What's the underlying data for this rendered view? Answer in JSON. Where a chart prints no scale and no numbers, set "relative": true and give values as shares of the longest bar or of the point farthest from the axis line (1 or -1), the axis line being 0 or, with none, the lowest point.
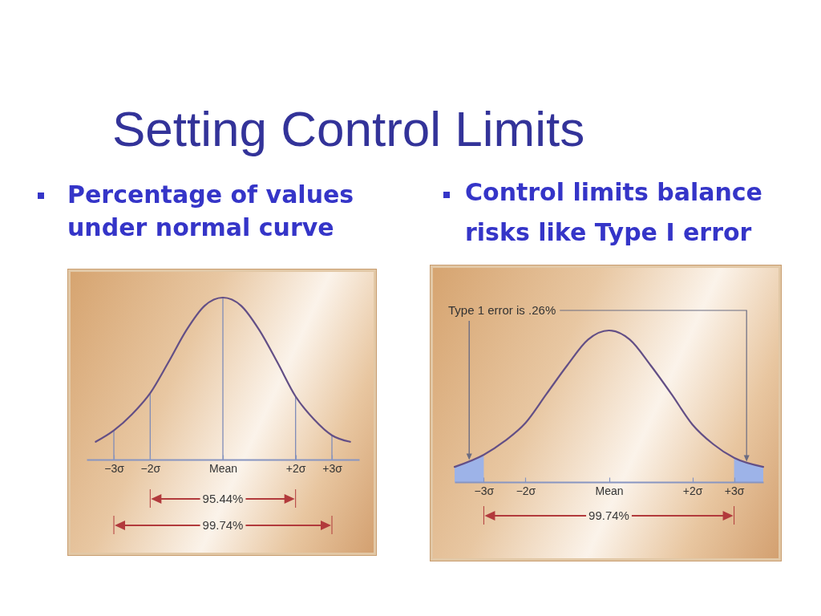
{
  "chart_data": [
    {
      "type": "line",
      "title": "Setting Control Limits",
      "subtitle": "Percentage of values under normal curve",
      "relative": true,
      "xlim": [
        -3.75,
        3.75
      ],
      "xticks": [
        {
          "value": -3,
          "label": "−3σ"
        },
        {
          "value": -2,
          "label": "−2σ"
        },
        {
          "value": 0,
          "label": "Mean"
        },
        {
          "value": 2,
          "label": "+2σ"
        },
        {
          "value": 3,
          "label": "+3σ"
        }
      ],
      "series": [
        {
          "color": "#634f86",
          "x": [
            -3.5,
            -3,
            -2.5,
            -2,
            -1.5,
            -1,
            -0.5,
            0,
            0.5,
            1,
            1.5,
            2,
            2.5,
            3,
            3.5
          ],
          "values": [
            0.11,
            0.18,
            0.28,
            0.41,
            0.6,
            0.8,
            0.95,
            1,
            0.95,
            0.8,
            0.6,
            0.39,
            0.25,
            0.15,
            0.11
          ]
        }
      ],
      "ref_lines": [
        {
          "axis": "x",
          "value": -3,
          "color": "#7f8cb8"
        },
        {
          "axis": "x",
          "value": -2,
          "color": "#7f8cb8"
        },
        {
          "axis": "x",
          "value": 0,
          "color": "#7f8cb8"
        },
        {
          "axis": "x",
          "value": 2,
          "color": "#7f8cb8"
        },
        {
          "axis": "x",
          "value": 3,
          "color": "#7f8cb8"
        }
      ],
      "annotations": [
        "95.44%",
        "99.74%"
      ]
    },
    {
      "type": "line",
      "subtitle": "Control limits balance risks like Type I error",
      "relative": true,
      "xlim": [
        -3.7,
        3.7
      ],
      "xticks": [
        {
          "value": -3,
          "label": "−3σ"
        },
        {
          "value": -2,
          "label": "−2σ"
        },
        {
          "value": 0,
          "label": "Mean"
        },
        {
          "value": 2,
          "label": "+2σ"
        },
        {
          "value": 3,
          "label": "+3σ"
        }
      ],
      "series": [
        {
          "color": "#634f86",
          "x": [
            -3.7,
            -3,
            -2.5,
            -2,
            -1.5,
            -1,
            -0.5,
            0,
            0.5,
            1,
            1.5,
            2,
            2.5,
            3,
            3.7
          ],
          "values": [
            0.1,
            0.18,
            0.27,
            0.39,
            0.58,
            0.77,
            0.94,
            1,
            0.94,
            0.77,
            0.58,
            0.38,
            0.25,
            0.16,
            0.1
          ]
        },
        {
          "type": "area",
          "color": "#9db3e8",
          "x": [
            -3.7,
            -3.35,
            -3
          ],
          "values": [
            0.1,
            0.14,
            0.18
          ]
        },
        {
          "type": "area",
          "color": "#9db3e8",
          "x": [
            3,
            3.3,
            3.7
          ],
          "values": [
            0.16,
            0.13,
            0.1
          ]
        }
      ],
      "annotations": [
        "Type 1 error is .26%",
        "99.74%"
      ]
    }
  ]
}
